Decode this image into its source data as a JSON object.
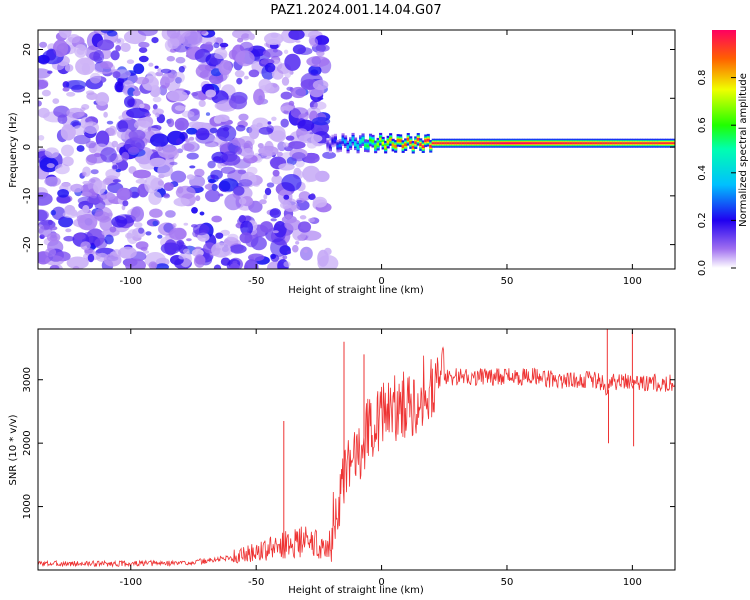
{
  "title": "PAZ1.2024.001.14.04.G07",
  "chart_data": [
    {
      "type": "heatmap",
      "xlabel": "Height of straight line (km)",
      "ylabel": "Frequency (Hz)",
      "xlim": [
        -137,
        117
      ],
      "ylim": [
        -25,
        24
      ],
      "xticks": [
        -100,
        -50,
        0,
        50,
        100
      ],
      "yticks": [
        -20,
        -10,
        0,
        10,
        20
      ],
      "colorbar": {
        "label": "Normalized spectral amplitude",
        "range": [
          0,
          1
        ],
        "ticks": [
          "0.0",
          "0.2",
          "0.4",
          "0.6",
          "0.8"
        ],
        "colormap": "rainbow (purple to red/pink)"
      },
      "noise_region_km": [
        -137,
        -22
      ],
      "signal_band": {
        "x_range_km": [
          -22,
          117
        ],
        "frequency_hz": 0.8,
        "profile": [
          {
            "x": -22,
            "amplitude": 0.15
          },
          {
            "x": -15,
            "amplitude": 0.35
          },
          {
            "x": -10,
            "amplitude": 0.45
          },
          {
            "x": 0,
            "amplitude": 0.75
          },
          {
            "x": 5,
            "amplitude": 0.85
          },
          {
            "x": 15,
            "amplitude": 0.95
          },
          {
            "x": 50,
            "amplitude": 1.0
          },
          {
            "x": 100,
            "amplitude": 0.95
          },
          {
            "x": 117,
            "amplitude": 0.95
          }
        ]
      },
      "grid": false
    },
    {
      "type": "line",
      "xlabel": "Height of straight line (km)",
      "ylabel": "SNR (10 * v/v)",
      "xlim": [
        -137,
        117
      ],
      "ylim": [
        0,
        3800
      ],
      "xticks": [
        -100,
        -50,
        0,
        50,
        100
      ],
      "yticks": [
        1000,
        2000,
        3000
      ],
      "color": "#ee3333",
      "grid": false,
      "series": [
        {
          "x": [
            -137,
            -120,
            -100,
            -80,
            -70,
            -60,
            -50,
            -45,
            -40,
            -35,
            -30,
            -27,
            -24,
            -22,
            -20,
            -18,
            -15,
            -12,
            -10,
            -8,
            -6,
            -4,
            -2,
            0,
            3,
            6,
            10,
            14,
            18,
            22,
            25,
            30,
            40,
            50,
            60,
            70,
            80,
            85,
            88,
            90,
            92,
            95,
            98,
            100,
            102,
            105,
            110,
            117
          ],
          "y": [
            100,
            100,
            100,
            110,
            140,
            200,
            280,
            330,
            380,
            430,
            460,
            420,
            380,
            300,
            600,
            900,
            1300,
            1700,
            1900,
            2000,
            2200,
            2300,
            2400,
            2450,
            2500,
            2550,
            2600,
            2700,
            2900,
            3000,
            3050,
            3050,
            3050,
            3050,
            3050,
            3000,
            3000,
            3000,
            2950,
            2800,
            2950,
            3000,
            3000,
            2950,
            2950,
            2950,
            2950,
            2950
          ]
        }
      ],
      "spikes": [
        {
          "x": -39,
          "y": 2350
        },
        {
          "x": -15,
          "y": 3600
        },
        {
          "x": -7,
          "y": 3400
        },
        {
          "x": 90,
          "y": 3850
        },
        {
          "x": 90.5,
          "y": 2000
        },
        {
          "x": 100,
          "y": 3750
        },
        {
          "x": 100.5,
          "y": 1950
        }
      ]
    }
  ]
}
